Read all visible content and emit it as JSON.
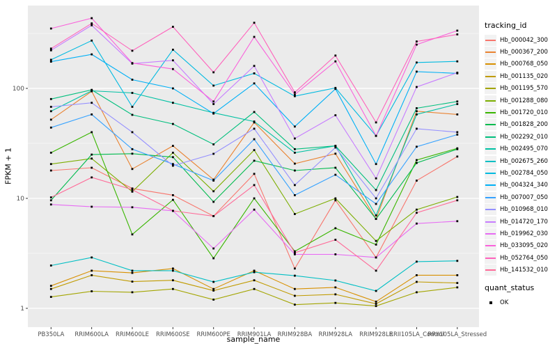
{
  "chart_data": {
    "type": "line",
    "title": "",
    "xlabel": "sample_name",
    "ylabel": "FPKM + 1",
    "y_scale": "log10",
    "y_ticks": [
      1,
      10,
      100
    ],
    "y_tick_labels": [
      "1",
      "10",
      "100"
    ],
    "y_minor_ticks": [
      3.162,
      31.62,
      316.2
    ],
    "ylim": [
      0.93,
      575
    ],
    "grid": "on",
    "legend_position": "right",
    "x_categories": [
      "PB350LA",
      "RRIM600LA",
      "RRIM600LE",
      "RRIM600SE",
      "RRIM600PE",
      "RRIM901LA",
      "RRIM928BA",
      "RRIM928LA",
      "RRIM928LE",
      "RRII105LA_Control",
      "RRII105LA_Stressed"
    ],
    "series": [
      {
        "name": "Hb_000042_300",
        "color": "#F8766D",
        "values": [
          17.9,
          19,
          12.3,
          10.7,
          6.9,
          16.7,
          2.3,
          9.6,
          2.9,
          14.5,
          24
        ]
      },
      {
        "name": "Hb_000367_200",
        "color": "#EA8331",
        "values": [
          52,
          94,
          18.5,
          30,
          14.8,
          49,
          20.7,
          25.5,
          6.5,
          62,
          58
        ]
      },
      {
        "name": "Hb_000768_050",
        "color": "#D89000",
        "values": [
          1.6,
          2.2,
          2.1,
          2.3,
          1.5,
          2.2,
          1.5,
          1.55,
          1.15,
          2.0,
          2.0
        ]
      },
      {
        "name": "Hb_001135_020",
        "color": "#C09B00",
        "values": [
          1.5,
          2.0,
          1.75,
          1.8,
          1.45,
          1.8,
          1.3,
          1.34,
          1.1,
          1.74,
          1.7
        ]
      },
      {
        "name": "Hb_001195_570",
        "color": "#A3A500",
        "values": [
          1.27,
          1.43,
          1.4,
          1.5,
          1.2,
          1.5,
          1.08,
          1.12,
          1.05,
          1.4,
          1.55
        ]
      },
      {
        "name": "Hb_001288_080",
        "color": "#7CAE00",
        "values": [
          20.5,
          23,
          11.5,
          26,
          11.6,
          27.5,
          7.2,
          10,
          4.1,
          7.9,
          10.3
        ]
      },
      {
        "name": "Hb_001720_010",
        "color": "#39B600",
        "values": [
          26,
          40,
          4.7,
          9.7,
          2.85,
          10,
          3.3,
          5.35,
          3.8,
          22.3,
          28.5
        ]
      },
      {
        "name": "Hb_001828_200",
        "color": "#00BB4E",
        "values": [
          9.6,
          25,
          25.5,
          23.7,
          9.3,
          22,
          17.9,
          19,
          6.5,
          21,
          28
        ]
      },
      {
        "name": "Hb_002292_010",
        "color": "#00BF7D",
        "values": [
          80,
          97,
          57.5,
          47.5,
          31,
          61,
          28,
          30,
          11.9,
          66,
          76
        ]
      },
      {
        "name": "Hb_002495_070",
        "color": "#00C1A3",
        "values": [
          62,
          95,
          91,
          74,
          60,
          50,
          26,
          30,
          7.0,
          58,
          72
        ]
      },
      {
        "name": "Hb_002675_260",
        "color": "#00BFC4",
        "values": [
          2.45,
          2.9,
          2.2,
          2.2,
          1.74,
          2.13,
          1.98,
          1.79,
          1.44,
          2.66,
          2.7
        ]
      },
      {
        "name": "Hb_002784_050",
        "color": "#00BAE0",
        "values": [
          182,
          272,
          68,
          225,
          106,
          137,
          85,
          101,
          37,
          172,
          176
        ]
      },
      {
        "name": "Hb_004324_340",
        "color": "#00B0F6",
        "values": [
          175,
          204,
          120,
          100,
          59,
          111,
          45,
          99,
          20.5,
          142,
          137
        ]
      },
      {
        "name": "Hb_007007_050",
        "color": "#35A2FF",
        "values": [
          44,
          58,
          28,
          20.5,
          14.5,
          34.5,
          10.7,
          16.4,
          8.9,
          29.5,
          38
        ]
      },
      {
        "name": "Hb_010968_010",
        "color": "#9590FF",
        "values": [
          68,
          74,
          40,
          19.8,
          25.4,
          43,
          13.2,
          29,
          10,
          43,
          40
        ]
      },
      {
        "name": "Hb_014720_170",
        "color": "#C77CFF",
        "values": [
          222,
          375,
          168,
          180,
          72,
          160,
          35,
          57,
          15.2,
          103,
          139
        ]
      },
      {
        "name": "Hb_019962_030",
        "color": "#E76BF3",
        "values": [
          8.8,
          8.4,
          8.3,
          7.7,
          3.5,
          7.9,
          3.1,
          3.1,
          2.9,
          5.9,
          6.2
        ]
      },
      {
        "name": "Hb_033095_020",
        "color": "#FA62DB",
        "values": [
          350,
          435,
          170,
          150,
          76,
          294,
          88,
          176,
          37,
          250,
          335
        ]
      },
      {
        "name": "Hb_052764_050",
        "color": "#FF62BC",
        "values": [
          230,
          390,
          220,
          363,
          140,
          395,
          92,
          199,
          49,
          267,
          310
        ]
      },
      {
        "name": "Hb_141532_010",
        "color": "#FF6A98",
        "values": [
          10.2,
          15.5,
          12,
          7.7,
          6.9,
          13.2,
          3.2,
          4.2,
          2.2,
          7.4,
          9.6
        ]
      }
    ]
  },
  "legend": {
    "tracking_title": "tracking_id",
    "quant_title": "quant_status",
    "quant_items": [
      {
        "label": "OK",
        "marker": "black-square"
      }
    ]
  },
  "colors": {
    "panel_bg": "#EBEBEB",
    "grid": "#FFFFFF",
    "axis_text": "#4D4D4D",
    "tick_mark": "#333333",
    "point": "#000000",
    "legend_key_bg": "#F2F2F2",
    "figure_bg": "#FFFFFF"
  }
}
